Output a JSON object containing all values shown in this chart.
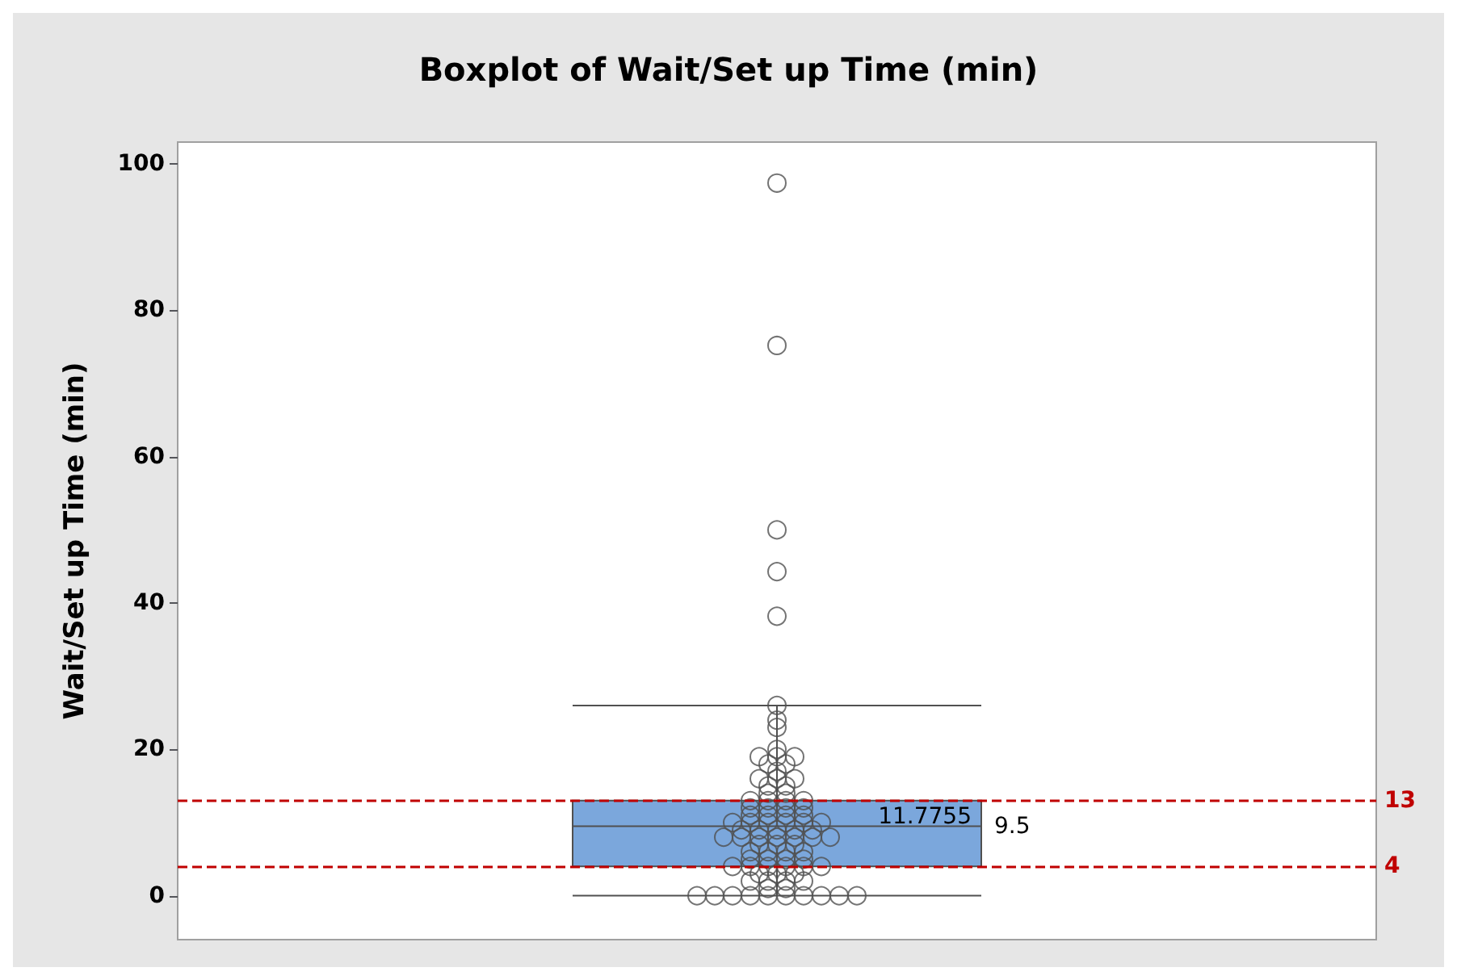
{
  "chart_data": {
    "type": "box",
    "title": "Boxplot of Wait/Set up Time (min)",
    "ylabel": "Wait/Set up Time (min)",
    "categories": [
      null
    ],
    "boxes": [
      {
        "low": 0,
        "q1": 4,
        "median": 9.5,
        "q3": 13,
        "high": 26,
        "outliers": [
          38.2,
          44.3,
          50,
          75.2,
          97.4
        ]
      }
    ],
    "color": "#7ba7dc",
    "series": [
      {
        "type": "scatter",
        "color": "#505050",
        "x": [
          null,
          null,
          null,
          null,
          null,
          null,
          null,
          null,
          null,
          null,
          null,
          null,
          null,
          null,
          null,
          null,
          null,
          null,
          null,
          null,
          null,
          null,
          null,
          null,
          null,
          null,
          null,
          null,
          null,
          null,
          null,
          null,
          null,
          null,
          null,
          null,
          null,
          null,
          null,
          null,
          null,
          null,
          null,
          null,
          null,
          null,
          null,
          null,
          null,
          null,
          null,
          null,
          null,
          null,
          null,
          null,
          null,
          null,
          null,
          null,
          null,
          null,
          null,
          null,
          null,
          null,
          null,
          null,
          null,
          null,
          null,
          null,
          null,
          null,
          null,
          null,
          null,
          null,
          null,
          null,
          null,
          null,
          null
        ],
        "values": [
          0,
          0,
          0,
          0,
          0,
          0,
          0,
          0,
          0,
          0,
          1,
          1,
          2,
          2,
          2,
          2,
          3,
          3,
          3,
          4,
          4,
          4,
          4,
          4,
          4,
          5,
          5,
          5,
          5,
          6,
          6,
          6,
          6,
          7,
          7,
          7,
          8,
          8,
          8,
          8,
          8,
          8,
          8,
          9,
          9,
          9,
          9,
          9,
          10,
          10,
          10,
          10,
          10,
          10,
          11,
          11,
          11,
          11,
          12,
          12,
          12,
          12,
          13,
          13,
          13,
          13,
          14,
          14,
          15,
          15,
          16,
          16,
          16,
          17,
          18,
          18,
          19,
          19,
          19,
          20,
          23,
          24,
          26
        ]
      }
    ],
    "ylim": [
      -6,
      103
    ],
    "yticks": [
      0,
      20,
      40,
      60,
      80,
      100
    ],
    "marker": "circle",
    "grid": false,
    "ref_lines": [
      {
        "axis": "y",
        "value": 13,
        "label": "13",
        "color": "#c00000",
        "line_style": "dashed"
      },
      {
        "axis": "y",
        "value": 4,
        "label": "4",
        "color": "#c00000",
        "line_style": "dashed"
      }
    ],
    "annotations": [
      "11.7755",
      "9.5"
    ]
  }
}
